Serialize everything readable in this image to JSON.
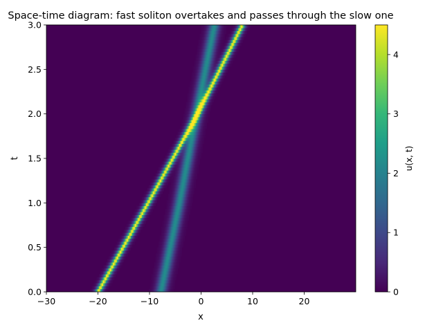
{
  "chart_data": {
    "type": "heatmap",
    "title": "Space-time diagram: fast soliton overtakes and passes through the slow one",
    "xlabel": "x",
    "ylabel": "t",
    "xlim": [
      -30,
      30
    ],
    "ylim": [
      0,
      3
    ],
    "x_ticks": [
      -30,
      -20,
      -10,
      0,
      10,
      20
    ],
    "x_tick_labels": [
      "−30",
      "−20",
      "−10",
      "0",
      "10",
      "20"
    ],
    "y_ticks": [
      0,
      0.5,
      1,
      1.5,
      2,
      2.5,
      3
    ],
    "y_tick_labels": [
      "0.0",
      "0.5",
      "1.0",
      "1.5",
      "2.0",
      "2.5",
      "3.0"
    ],
    "colorbar": {
      "label": "u(x, t)",
      "colormap": "viridis",
      "range": [
        0,
        4.5
      ],
      "ticks": [
        0,
        1,
        2,
        3,
        4
      ],
      "tick_labels": [
        "0",
        "1",
        "2",
        "3",
        "4"
      ]
    },
    "grid": false,
    "series": [
      {
        "amplitude": 4.5,
        "width": 0.55,
        "x_at_t": [
          [
            0,
            -20
          ],
          [
            1,
            -10.3
          ],
          [
            2,
            -0.7
          ],
          [
            3,
            8
          ]
        ]
      },
      {
        "amplitude": 2.2,
        "width": 0.9,
        "x_at_t": [
          [
            0,
            -7.8
          ],
          [
            1,
            -4.2
          ],
          [
            2,
            -0.9
          ],
          [
            3,
            2.6
          ]
        ]
      }
    ],
    "colors": {
      "viridis": [
        "#440154",
        "#482878",
        "#3e4989",
        "#31688e",
        "#26828e",
        "#1f9e89",
        "#35b779",
        "#6ece58",
        "#b5de2b",
        "#fde725"
      ]
    }
  }
}
